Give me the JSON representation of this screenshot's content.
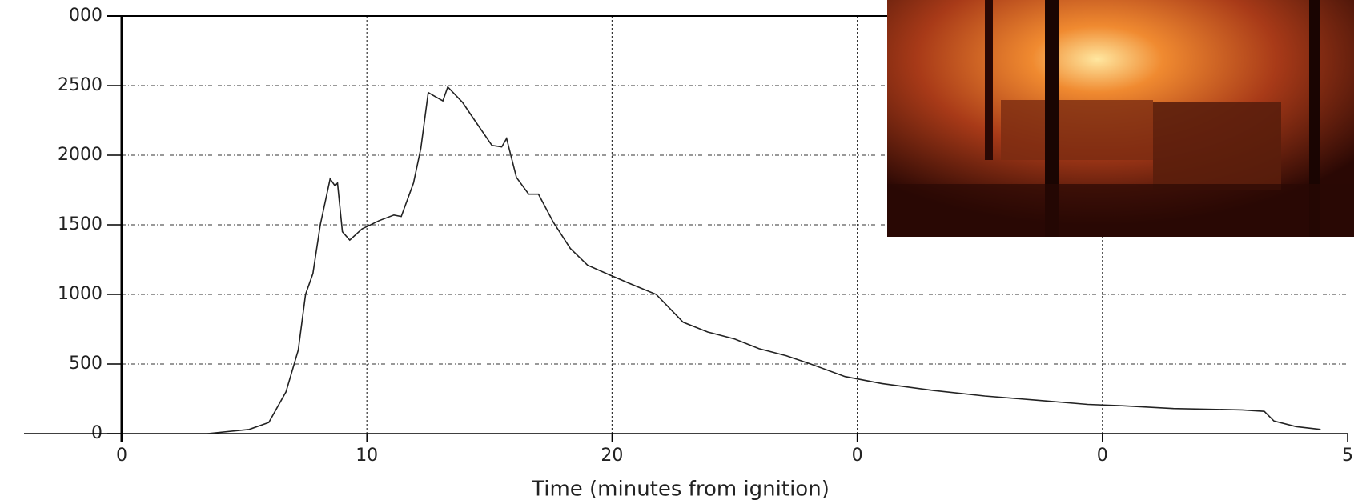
{
  "chart_data": {
    "type": "line",
    "xlabel": "Time (minutes from ignition)",
    "x": [
      3.5,
      5.2,
      6.0,
      6.7,
      7.2,
      7.5,
      7.8,
      8.1,
      8.5,
      8.7,
      8.8,
      9.0,
      9.3,
      9.8,
      10.5,
      11.1,
      11.4,
      11.9,
      12.2,
      12.5,
      12.8,
      13.1,
      13.3,
      13.9,
      14.4,
      15.1,
      15.5,
      15.7,
      16.1,
      16.6,
      17.0,
      17.6,
      18.3,
      19.0,
      19.9,
      20.7,
      21.8,
      22.9,
      23.9,
      25.0,
      26.0,
      27.1,
      28.1,
      29.5,
      31.0,
      33.1,
      35.2,
      37.3,
      39.4,
      40.8,
      42.9,
      45.7,
      46.6,
      47.0,
      47.9,
      48.9
    ],
    "values": [
      0,
      30,
      80,
      300,
      600,
      1000,
      1150,
      1500,
      1830,
      1780,
      1800,
      1450,
      1390,
      1470,
      1530,
      1570,
      1560,
      1800,
      2050,
      2450,
      2420,
      2390,
      2490,
      2380,
      2250,
      2070,
      2060,
      2120,
      1840,
      1720,
      1720,
      1520,
      1330,
      1210,
      1140,
      1080,
      1000,
      800,
      730,
      680,
      610,
      560,
      500,
      410,
      360,
      310,
      270,
      240,
      210,
      200,
      180,
      170,
      160,
      90,
      50,
      30
    ],
    "color": "#222222",
    "xlim": [
      0,
      50
    ],
    "xticks": [
      0,
      10,
      20,
      {
        "value": 30,
        "label": "0"
      },
      {
        "value": 40,
        "label": "0"
      },
      {
        "value": 50,
        "label": "5"
      }
    ],
    "ylim": [
      0,
      3000
    ],
    "yticks": [
      0,
      500,
      1000,
      1500,
      2000,
      2500,
      {
        "value": 3000,
        "label": "000"
      }
    ],
    "grid": true
  }
}
